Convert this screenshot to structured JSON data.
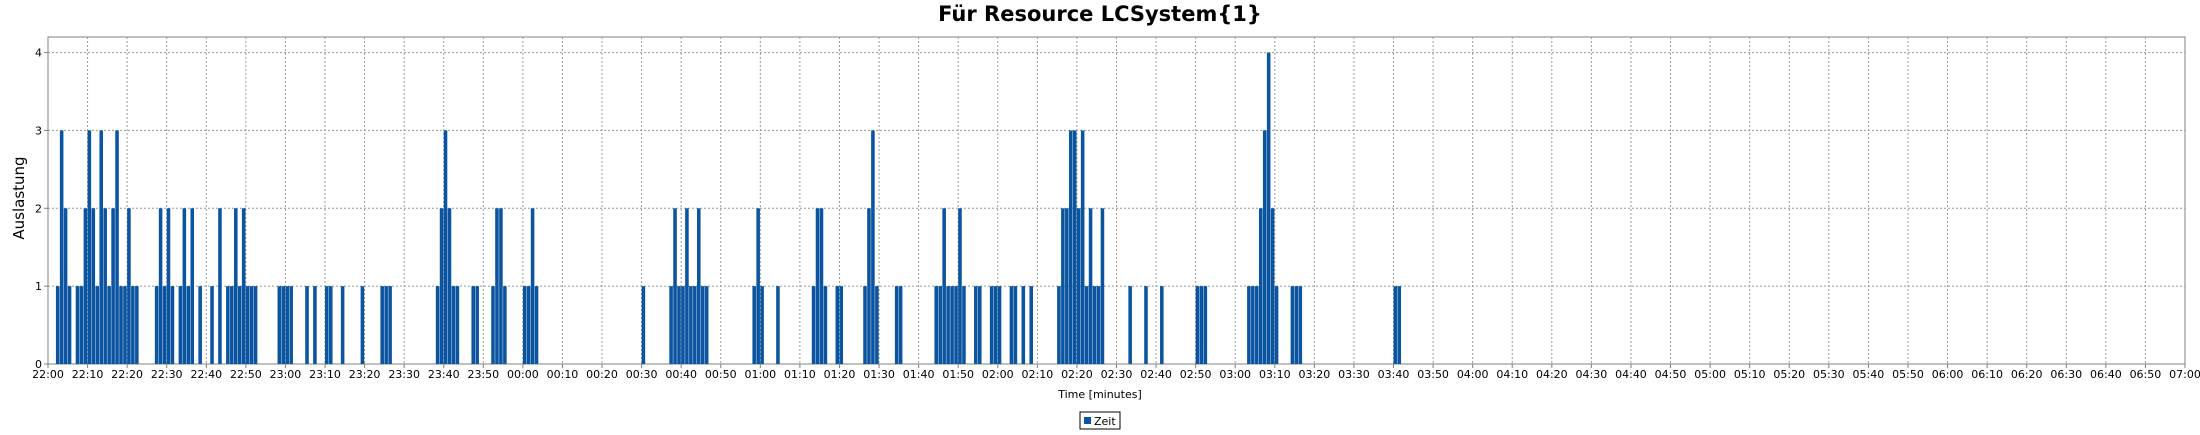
{
  "chart_data": {
    "type": "bar",
    "title": "Für Resource LCSystem{1}",
    "xlabel": "Time [minutes]",
    "ylabel": "Auslastung",
    "ylim": [
      0,
      4.2
    ],
    "yticks": [
      0,
      1,
      2,
      3,
      4
    ],
    "xlim": [
      "22:00",
      "07:00"
    ],
    "xticks": [
      "22:00",
      "22:10",
      "22:20",
      "22:30",
      "22:40",
      "22:50",
      "23:00",
      "23:10",
      "23:20",
      "23:30",
      "23:40",
      "23:50",
      "00:00",
      "00:10",
      "00:20",
      "00:30",
      "00:40",
      "00:50",
      "01:00",
      "01:10",
      "01:20",
      "01:30",
      "01:40",
      "01:50",
      "02:00",
      "02:10",
      "02:20",
      "02:30",
      "02:40",
      "02:50",
      "03:00",
      "03:10",
      "03:20",
      "03:30",
      "03:40",
      "03:50",
      "04:00",
      "04:10",
      "04:20",
      "04:30",
      "04:40",
      "04:50",
      "05:00",
      "05:10",
      "05:20",
      "05:30",
      "05:40",
      "05:50",
      "06:00",
      "06:10",
      "06:20",
      "06:30",
      "06:40",
      "06:50",
      "07:00"
    ],
    "grid": true,
    "legend_position": "bottom",
    "series": [
      {
        "name": "Zeit",
        "color": "#0b55a0",
        "points": [
          [
            "22:02",
            1
          ],
          [
            "22:03",
            3
          ],
          [
            "22:04",
            2
          ],
          [
            "22:05",
            1
          ],
          [
            "22:07",
            1
          ],
          [
            "22:08",
            1
          ],
          [
            "22:09",
            2
          ],
          [
            "22:10",
            3
          ],
          [
            "22:11",
            2
          ],
          [
            "22:12",
            1
          ],
          [
            "22:13",
            3
          ],
          [
            "22:14",
            2
          ],
          [
            "22:15",
            1
          ],
          [
            "22:16",
            2
          ],
          [
            "22:17",
            3
          ],
          [
            "22:18",
            1
          ],
          [
            "22:19",
            1
          ],
          [
            "22:20",
            2
          ],
          [
            "22:21",
            1
          ],
          [
            "22:22",
            1
          ],
          [
            "22:27",
            1
          ],
          [
            "22:28",
            2
          ],
          [
            "22:29",
            1
          ],
          [
            "22:30",
            2
          ],
          [
            "22:31",
            1
          ],
          [
            "22:33",
            1
          ],
          [
            "22:34",
            2
          ],
          [
            "22:35",
            1
          ],
          [
            "22:36",
            2
          ],
          [
            "22:38",
            1
          ],
          [
            "22:41",
            1
          ],
          [
            "22:43",
            2
          ],
          [
            "22:45",
            1
          ],
          [
            "22:46",
            1
          ],
          [
            "22:47",
            2
          ],
          [
            "22:48",
            1
          ],
          [
            "22:49",
            2
          ],
          [
            "22:50",
            1
          ],
          [
            "22:51",
            1
          ],
          [
            "22:52",
            1
          ],
          [
            "22:58",
            1
          ],
          [
            "22:59",
            1
          ],
          [
            "23:00",
            1
          ],
          [
            "23:01",
            1
          ],
          [
            "23:05",
            1
          ],
          [
            "23:07",
            1
          ],
          [
            "23:10",
            1
          ],
          [
            "23:11",
            1
          ],
          [
            "23:14",
            1
          ],
          [
            "23:19",
            1
          ],
          [
            "23:24",
            1
          ],
          [
            "23:25",
            1
          ],
          [
            "23:26",
            1
          ],
          [
            "23:38",
            1
          ],
          [
            "23:39",
            2
          ],
          [
            "23:40",
            3
          ],
          [
            "23:41",
            2
          ],
          [
            "23:42",
            1
          ],
          [
            "23:43",
            1
          ],
          [
            "23:47",
            1
          ],
          [
            "23:48",
            1
          ],
          [
            "23:52",
            1
          ],
          [
            "23:53",
            2
          ],
          [
            "23:54",
            2
          ],
          [
            "23:55",
            1
          ],
          [
            "00:00",
            1
          ],
          [
            "00:01",
            1
          ],
          [
            "00:02",
            2
          ],
          [
            "00:03",
            1
          ],
          [
            "00:30",
            1
          ],
          [
            "00:37",
            1
          ],
          [
            "00:38",
            2
          ],
          [
            "00:39",
            1
          ],
          [
            "00:40",
            1
          ],
          [
            "00:41",
            2
          ],
          [
            "00:42",
            1
          ],
          [
            "00:43",
            1
          ],
          [
            "00:44",
            2
          ],
          [
            "00:45",
            1
          ],
          [
            "00:46",
            1
          ],
          [
            "00:58",
            1
          ],
          [
            "00:59",
            2
          ],
          [
            "01:00",
            1
          ],
          [
            "01:04",
            1
          ],
          [
            "01:13",
            1
          ],
          [
            "01:14",
            2
          ],
          [
            "01:15",
            2
          ],
          [
            "01:16",
            1
          ],
          [
            "01:19",
            1
          ],
          [
            "01:20",
            1
          ],
          [
            "01:26",
            1
          ],
          [
            "01:27",
            2
          ],
          [
            "01:28",
            3
          ],
          [
            "01:29",
            1
          ],
          [
            "01:34",
            1
          ],
          [
            "01:35",
            1
          ],
          [
            "01:44",
            1
          ],
          [
            "01:45",
            1
          ],
          [
            "01:46",
            2
          ],
          [
            "01:47",
            1
          ],
          [
            "01:48",
            1
          ],
          [
            "01:49",
            1
          ],
          [
            "01:50",
            2
          ],
          [
            "01:51",
            1
          ],
          [
            "01:54",
            1
          ],
          [
            "01:55",
            1
          ],
          [
            "01:58",
            1
          ],
          [
            "01:59",
            1
          ],
          [
            "02:00",
            1
          ],
          [
            "02:03",
            1
          ],
          [
            "02:04",
            1
          ],
          [
            "02:06",
            1
          ],
          [
            "02:08",
            1
          ],
          [
            "02:15",
            1
          ],
          [
            "02:16",
            2
          ],
          [
            "02:17",
            2
          ],
          [
            "02:18",
            3
          ],
          [
            "02:19",
            3
          ],
          [
            "02:20",
            2
          ],
          [
            "02:21",
            3
          ],
          [
            "02:22",
            1
          ],
          [
            "02:23",
            2
          ],
          [
            "02:24",
            1
          ],
          [
            "02:25",
            1
          ],
          [
            "02:26",
            2
          ],
          [
            "02:33",
            1
          ],
          [
            "02:37",
            1
          ],
          [
            "02:41",
            1
          ],
          [
            "02:50",
            1
          ],
          [
            "02:51",
            1
          ],
          [
            "02:52",
            1
          ],
          [
            "03:03",
            1
          ],
          [
            "03:04",
            1
          ],
          [
            "03:05",
            1
          ],
          [
            "03:06",
            2
          ],
          [
            "03:07",
            3
          ],
          [
            "03:08",
            4
          ],
          [
            "03:09",
            2
          ],
          [
            "03:10",
            1
          ],
          [
            "03:14",
            1
          ],
          [
            "03:15",
            1
          ],
          [
            "03:16",
            1
          ],
          [
            "03:40",
            1
          ],
          [
            "03:41",
            1
          ]
        ]
      }
    ]
  }
}
